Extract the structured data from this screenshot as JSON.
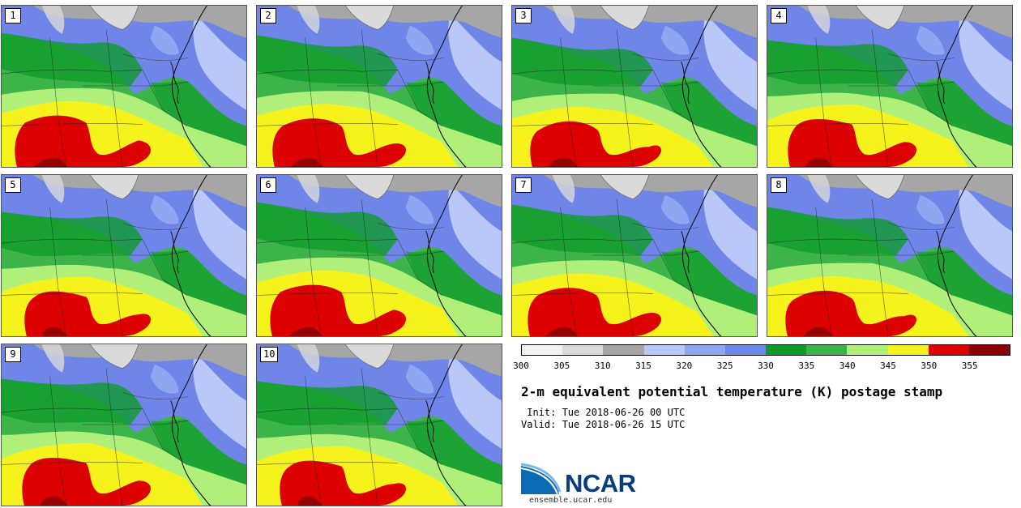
{
  "panels": [
    "1",
    "2",
    "3",
    "4",
    "5",
    "6",
    "7",
    "8",
    "9",
    "10"
  ],
  "colorbar": {
    "colors": [
      "#f2f2f2",
      "#dadada",
      "#a6a6a6",
      "#b9c8f8",
      "#8fa6f0",
      "#6f86e8",
      "#0f9b2b",
      "#3cb44a",
      "#b0f07a",
      "#f5f21c",
      "#dd0000",
      "#8a0000"
    ],
    "ticks": [
      "300",
      "305",
      "310",
      "315",
      "320",
      "325",
      "330",
      "335",
      "340",
      "345",
      "350",
      "355"
    ]
  },
  "title": "2-m equivalent potential temperature (K) postage stamp",
  "init": " Init: Tue 2018-06-26 00 UTC",
  "valid": "Valid: Tue 2018-06-26 15 UTC",
  "logo": {
    "text": "NCAR",
    "url": "ensemble.ucar.edu"
  }
}
